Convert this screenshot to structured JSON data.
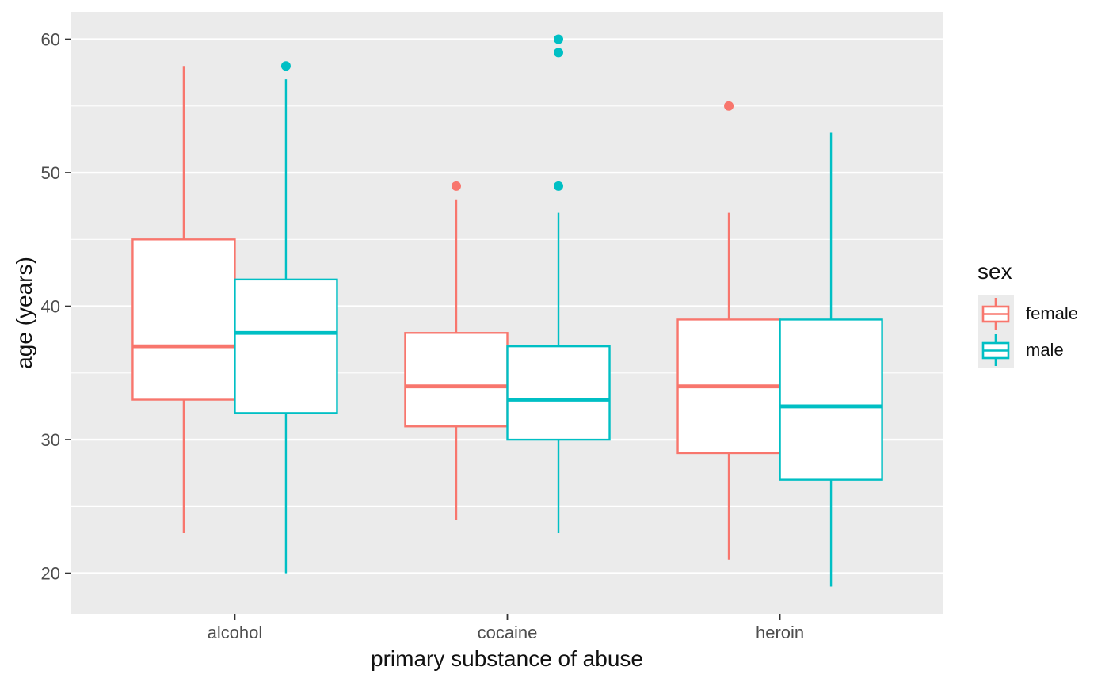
{
  "legend": {
    "title": "sex",
    "items": [
      {
        "label": "female",
        "color": "#F8766D"
      },
      {
        "label": "male",
        "color": "#00BFC4"
      }
    ]
  },
  "chart_data": {
    "type": "boxplot",
    "title": "",
    "xlabel": "primary substance of abuse",
    "ylabel": "age (years)",
    "categories": [
      "alcohol",
      "cocaine",
      "heroin"
    ],
    "y_ticks": [
      20,
      30,
      40,
      50,
      60
    ],
    "y_minor_ticks": [
      25,
      35,
      45,
      55
    ],
    "ylim": [
      16.95,
      62.05
    ],
    "grid": true,
    "legend_position": "right",
    "series": [
      {
        "name": "female",
        "color": "#F8766D",
        "boxes": [
          {
            "category": "alcohol",
            "whisker_low": 23,
            "q1": 33,
            "median": 37,
            "q3": 45,
            "whisker_high": 58,
            "outliers": []
          },
          {
            "category": "cocaine",
            "whisker_low": 24,
            "q1": 31,
            "median": 34,
            "q3": 38,
            "whisker_high": 48,
            "outliers": [
              49
            ]
          },
          {
            "category": "heroin",
            "whisker_low": 21,
            "q1": 29,
            "median": 34,
            "q3": 39,
            "whisker_high": 47,
            "outliers": [
              55
            ]
          }
        ]
      },
      {
        "name": "male",
        "color": "#00BFC4",
        "boxes": [
          {
            "category": "alcohol",
            "whisker_low": 20,
            "q1": 32,
            "median": 38,
            "q3": 42,
            "whisker_high": 57,
            "outliers": [
              58
            ]
          },
          {
            "category": "cocaine",
            "whisker_low": 23,
            "q1": 30,
            "median": 33,
            "q3": 37,
            "whisker_high": 47,
            "outliers": [
              49,
              59,
              60
            ]
          },
          {
            "category": "heroin",
            "whisker_low": 19,
            "q1": 27,
            "median": 32.5,
            "q3": 39,
            "whisker_high": 53,
            "outliers": []
          }
        ]
      }
    ],
    "colors": {
      "panel_bg": "#EBEBEB",
      "grid": "#FFFFFF",
      "tick_label": "#4D4D4D",
      "tick_mark": "#333333",
      "axis_title": "#111111",
      "box_fill": "#FFFFFF"
    }
  }
}
